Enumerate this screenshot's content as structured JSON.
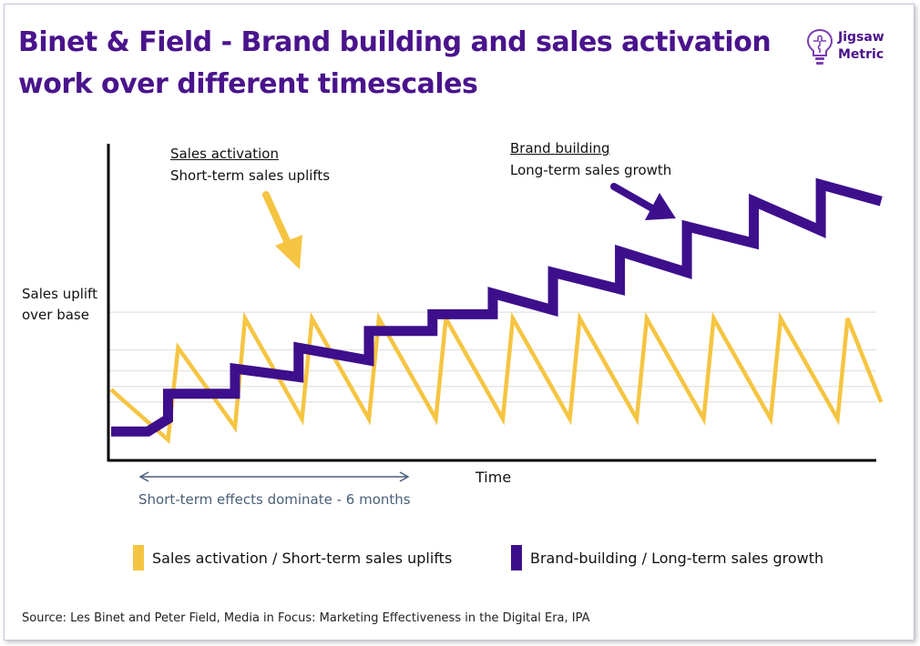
{
  "title": "Binet & Field - Brand building and sales activation work over different timescales",
  "logo": {
    "line1": "Jigsaw",
    "line2": "Metric",
    "icon": "lightbulb-puzzle-icon"
  },
  "annotations": {
    "sales_title": "Sales activation",
    "sales_sub": "Short-term sales uplifts",
    "brand_title": "Brand building",
    "brand_sub": "Long-term sales growth"
  },
  "axes": {
    "y_line1": "Sales uplift",
    "y_line2": "over base",
    "x": "Time"
  },
  "span_label": "Short-term effects dominate - 6 months",
  "legend": [
    {
      "label": "Sales activation / Short-term sales uplifts",
      "color": "#f5c542"
    },
    {
      "label": "Brand-building / Long-term sales growth",
      "color": "#3d0f8c"
    }
  ],
  "source": "Source: Les Binet and Peter Field, Media in Focus: Marketing Effectiveness in the Digital Era, IPA",
  "colors": {
    "sales": "#f5c542",
    "brand": "#3d0f8c",
    "title": "#4a148c",
    "span": "#4a5f78",
    "grid": "#e6e6e6"
  },
  "chart_data": {
    "type": "line",
    "grid": true,
    "legend_position": "bottom",
    "series": [
      {
        "name": "Sales activation / Short-term sales uplifts",
        "x": [
          0,
          0.85,
          1,
          1.85,
          2,
          2.85,
          3,
          3.85,
          4,
          4.85,
          5,
          5.85,
          6,
          6.85,
          7,
          7.85,
          8,
          8.85,
          9,
          9.85,
          10,
          10.85,
          11,
          11.5
        ],
        "y": [
          1.3,
          0.1,
          2.3,
          0.4,
          3.0,
          0.6,
          3.0,
          0.6,
          3.0,
          0.6,
          3.0,
          0.6,
          3.0,
          0.6,
          3.0,
          0.6,
          3.0,
          0.6,
          3.0,
          0.6,
          3.0,
          0.6,
          3.0,
          1.0
        ]
      },
      {
        "name": "Brand-building / Long-term sales growth",
        "x": [
          0,
          0.55,
          0.85,
          0.85,
          1.85,
          1.85,
          2.8,
          2.8,
          3.85,
          3.85,
          4.8,
          4.8,
          5.7,
          5.7,
          6.6,
          6.6,
          7.6,
          7.6,
          8.6,
          8.6,
          9.6,
          9.6,
          10.6,
          10.6,
          11.5
        ],
        "y": [
          0.3,
          0.3,
          0.6,
          1.2,
          1.2,
          1.8,
          1.6,
          2.3,
          2.0,
          2.7,
          2.7,
          3.1,
          3.1,
          3.6,
          3.2,
          4.1,
          3.7,
          4.6,
          4.1,
          5.2,
          4.8,
          5.8,
          5.1,
          6.2,
          5.8
        ]
      }
    ]
  }
}
